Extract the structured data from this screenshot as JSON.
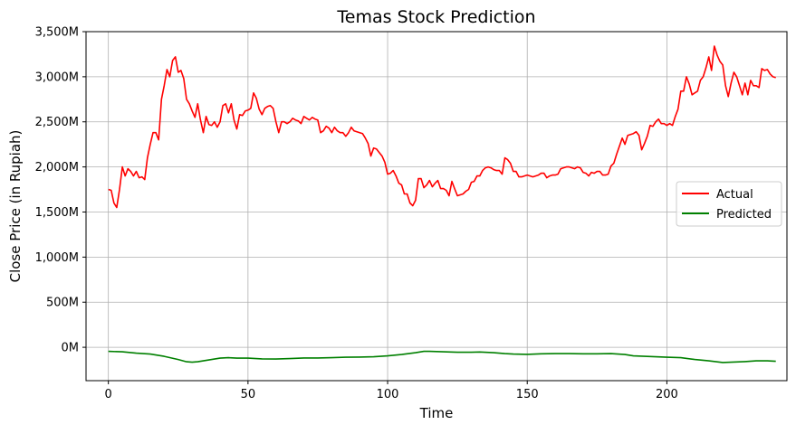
{
  "chart_data": {
    "type": "line",
    "title": "Temas Stock Prediction",
    "xlabel": "Time",
    "ylabel": "Close Price (in Rupiah)",
    "xlim": [
      -8,
      243
    ],
    "ylim": [
      -370,
      3500
    ],
    "xticks": [
      0,
      50,
      100,
      150,
      200
    ],
    "yticks": [
      {
        "value": 0,
        "label": "0M"
      },
      {
        "value": 500,
        "label": "500M"
      },
      {
        "value": 1000,
        "label": "1,000M"
      },
      {
        "value": 1500,
        "label": "1,500M"
      },
      {
        "value": 2000,
        "label": "2,000M"
      },
      {
        "value": 2500,
        "label": "2,500M"
      },
      {
        "value": 3000,
        "label": "3,000M"
      },
      {
        "value": 3500,
        "label": "3,500M"
      }
    ],
    "grid": true,
    "legend": {
      "position": "center-right"
    },
    "series": [
      {
        "name": "Actual",
        "color": "#ff0000",
        "points": [
          [
            0,
            1750
          ],
          [
            1,
            1740
          ],
          [
            2,
            1600
          ],
          [
            3,
            1550
          ],
          [
            4,
            1750
          ],
          [
            5,
            2000
          ],
          [
            6,
            1900
          ],
          [
            7,
            1980
          ],
          [
            8,
            1950
          ],
          [
            9,
            1900
          ],
          [
            10,
            1950
          ],
          [
            11,
            1880
          ],
          [
            12,
            1890
          ],
          [
            13,
            1860
          ],
          [
            14,
            2100
          ],
          [
            15,
            2250
          ],
          [
            16,
            2380
          ],
          [
            17,
            2380
          ],
          [
            18,
            2300
          ],
          [
            19,
            2750
          ],
          [
            20,
            2900
          ],
          [
            21,
            3080
          ],
          [
            22,
            3000
          ],
          [
            23,
            3180
          ],
          [
            24,
            3220
          ],
          [
            25,
            3050
          ],
          [
            26,
            3070
          ],
          [
            27,
            2980
          ],
          [
            28,
            2750
          ],
          [
            29,
            2700
          ],
          [
            30,
            2620
          ],
          [
            31,
            2550
          ],
          [
            32,
            2700
          ],
          [
            33,
            2520
          ],
          [
            34,
            2380
          ],
          [
            35,
            2560
          ],
          [
            36,
            2470
          ],
          [
            37,
            2460
          ],
          [
            38,
            2500
          ],
          [
            39,
            2440
          ],
          [
            40,
            2500
          ],
          [
            41,
            2680
          ],
          [
            42,
            2700
          ],
          [
            43,
            2600
          ],
          [
            44,
            2700
          ],
          [
            45,
            2520
          ],
          [
            46,
            2420
          ],
          [
            47,
            2580
          ],
          [
            48,
            2570
          ],
          [
            49,
            2620
          ],
          [
            50,
            2630
          ],
          [
            51,
            2650
          ],
          [
            52,
            2820
          ],
          [
            53,
            2760
          ],
          [
            54,
            2640
          ],
          [
            55,
            2580
          ],
          [
            56,
            2650
          ],
          [
            57,
            2670
          ],
          [
            58,
            2680
          ],
          [
            59,
            2650
          ],
          [
            60,
            2500
          ],
          [
            61,
            2380
          ],
          [
            62,
            2500
          ],
          [
            63,
            2500
          ],
          [
            64,
            2480
          ],
          [
            65,
            2500
          ],
          [
            66,
            2540
          ],
          [
            67,
            2520
          ],
          [
            68,
            2510
          ],
          [
            69,
            2480
          ],
          [
            70,
            2560
          ],
          [
            71,
            2540
          ],
          [
            72,
            2520
          ],
          [
            73,
            2550
          ],
          [
            74,
            2530
          ],
          [
            75,
            2520
          ],
          [
            76,
            2380
          ],
          [
            77,
            2400
          ],
          [
            78,
            2450
          ],
          [
            79,
            2430
          ],
          [
            80,
            2380
          ],
          [
            81,
            2440
          ],
          [
            82,
            2400
          ],
          [
            83,
            2380
          ],
          [
            84,
            2380
          ],
          [
            85,
            2340
          ],
          [
            86,
            2380
          ],
          [
            87,
            2440
          ],
          [
            88,
            2400
          ],
          [
            89,
            2390
          ],
          [
            90,
            2380
          ],
          [
            91,
            2370
          ],
          [
            92,
            2320
          ],
          [
            93,
            2260
          ],
          [
            94,
            2120
          ],
          [
            95,
            2210
          ],
          [
            96,
            2200
          ],
          [
            97,
            2160
          ],
          [
            98,
            2120
          ],
          [
            99,
            2050
          ],
          [
            100,
            1920
          ],
          [
            101,
            1930
          ],
          [
            102,
            1960
          ],
          [
            103,
            1900
          ],
          [
            104,
            1820
          ],
          [
            105,
            1800
          ],
          [
            106,
            1700
          ],
          [
            107,
            1700
          ],
          [
            108,
            1600
          ],
          [
            109,
            1570
          ],
          [
            110,
            1630
          ],
          [
            111,
            1870
          ],
          [
            112,
            1870
          ],
          [
            113,
            1770
          ],
          [
            114,
            1800
          ],
          [
            115,
            1850
          ],
          [
            116,
            1780
          ],
          [
            117,
            1820
          ],
          [
            118,
            1850
          ],
          [
            119,
            1760
          ],
          [
            120,
            1760
          ],
          [
            121,
            1740
          ],
          [
            122,
            1680
          ],
          [
            123,
            1840
          ],
          [
            124,
            1760
          ],
          [
            125,
            1680
          ],
          [
            126,
            1690
          ],
          [
            127,
            1700
          ],
          [
            128,
            1730
          ],
          [
            129,
            1750
          ],
          [
            130,
            1830
          ],
          [
            131,
            1840
          ],
          [
            132,
            1900
          ],
          [
            133,
            1900
          ],
          [
            134,
            1960
          ],
          [
            135,
            1990
          ],
          [
            136,
            2000
          ],
          [
            137,
            1990
          ],
          [
            138,
            1970
          ],
          [
            139,
            1960
          ],
          [
            140,
            1960
          ],
          [
            141,
            1920
          ],
          [
            142,
            2100
          ],
          [
            143,
            2080
          ],
          [
            144,
            2040
          ],
          [
            145,
            1950
          ],
          [
            146,
            1950
          ],
          [
            147,
            1890
          ],
          [
            148,
            1890
          ],
          [
            149,
            1900
          ],
          [
            150,
            1910
          ],
          [
            151,
            1900
          ],
          [
            152,
            1890
          ],
          [
            153,
            1900
          ],
          [
            154,
            1910
          ],
          [
            155,
            1930
          ],
          [
            156,
            1930
          ],
          [
            157,
            1880
          ],
          [
            158,
            1900
          ],
          [
            159,
            1910
          ],
          [
            160,
            1910
          ],
          [
            161,
            1920
          ],
          [
            162,
            1980
          ],
          [
            163,
            1990
          ],
          [
            164,
            2000
          ],
          [
            165,
            2000
          ],
          [
            166,
            1990
          ],
          [
            167,
            1980
          ],
          [
            168,
            2000
          ],
          [
            169,
            1990
          ],
          [
            170,
            1940
          ],
          [
            171,
            1930
          ],
          [
            172,
            1900
          ],
          [
            173,
            1940
          ],
          [
            174,
            1930
          ],
          [
            175,
            1950
          ],
          [
            176,
            1950
          ],
          [
            177,
            1910
          ],
          [
            178,
            1910
          ],
          [
            179,
            1920
          ],
          [
            180,
            2010
          ],
          [
            181,
            2040
          ],
          [
            182,
            2140
          ],
          [
            183,
            2230
          ],
          [
            184,
            2320
          ],
          [
            185,
            2250
          ],
          [
            186,
            2350
          ],
          [
            187,
            2360
          ],
          [
            188,
            2370
          ],
          [
            189,
            2390
          ],
          [
            190,
            2350
          ],
          [
            191,
            2190
          ],
          [
            192,
            2260
          ],
          [
            193,
            2340
          ],
          [
            194,
            2460
          ],
          [
            195,
            2450
          ],
          [
            196,
            2500
          ],
          [
            197,
            2530
          ],
          [
            198,
            2480
          ],
          [
            199,
            2480
          ],
          [
            200,
            2460
          ],
          [
            201,
            2480
          ],
          [
            202,
            2460
          ],
          [
            203,
            2560
          ],
          [
            204,
            2640
          ],
          [
            205,
            2840
          ],
          [
            206,
            2840
          ],
          [
            207,
            3000
          ],
          [
            208,
            2920
          ],
          [
            209,
            2800
          ],
          [
            210,
            2820
          ],
          [
            211,
            2840
          ],
          [
            212,
            2960
          ],
          [
            213,
            3000
          ],
          [
            214,
            3100
          ],
          [
            215,
            3220
          ],
          [
            216,
            3070
          ],
          [
            217,
            3340
          ],
          [
            218,
            3240
          ],
          [
            219,
            3170
          ],
          [
            220,
            3130
          ],
          [
            221,
            2900
          ],
          [
            222,
            2780
          ],
          [
            223,
            2930
          ],
          [
            224,
            3050
          ],
          [
            225,
            3000
          ],
          [
            226,
            2900
          ],
          [
            227,
            2800
          ],
          [
            228,
            2930
          ],
          [
            229,
            2800
          ],
          [
            230,
            2960
          ],
          [
            231,
            2900
          ],
          [
            232,
            2900
          ],
          [
            233,
            2880
          ],
          [
            234,
            3090
          ],
          [
            235,
            3070
          ],
          [
            236,
            3080
          ],
          [
            237,
            3030
          ],
          [
            238,
            3000
          ],
          [
            239,
            2990
          ]
        ]
      },
      {
        "name": "Predicted",
        "color": "#008000",
        "points": [
          [
            0,
            -45
          ],
          [
            5,
            -50
          ],
          [
            10,
            -65
          ],
          [
            15,
            -75
          ],
          [
            20,
            -100
          ],
          [
            25,
            -135
          ],
          [
            28,
            -160
          ],
          [
            30,
            -165
          ],
          [
            32,
            -160
          ],
          [
            35,
            -145
          ],
          [
            40,
            -120
          ],
          [
            43,
            -115
          ],
          [
            46,
            -120
          ],
          [
            50,
            -120
          ],
          [
            55,
            -128
          ],
          [
            60,
            -130
          ],
          [
            65,
            -125
          ],
          [
            70,
            -118
          ],
          [
            75,
            -118
          ],
          [
            80,
            -115
          ],
          [
            85,
            -110
          ],
          [
            90,
            -108
          ],
          [
            95,
            -105
          ],
          [
            100,
            -95
          ],
          [
            105,
            -80
          ],
          [
            110,
            -60
          ],
          [
            113,
            -45
          ],
          [
            115,
            -45
          ],
          [
            120,
            -50
          ],
          [
            125,
            -55
          ],
          [
            130,
            -55
          ],
          [
            133,
            -52
          ],
          [
            138,
            -60
          ],
          [
            142,
            -70
          ],
          [
            145,
            -75
          ],
          [
            150,
            -78
          ],
          [
            155,
            -72
          ],
          [
            160,
            -70
          ],
          [
            165,
            -70
          ],
          [
            170,
            -72
          ],
          [
            175,
            -72
          ],
          [
            180,
            -70
          ],
          [
            185,
            -80
          ],
          [
            188,
            -95
          ],
          [
            192,
            -100
          ],
          [
            196,
            -105
          ],
          [
            200,
            -110
          ],
          [
            205,
            -115
          ],
          [
            210,
            -135
          ],
          [
            215,
            -150
          ],
          [
            220,
            -168
          ],
          [
            223,
            -165
          ],
          [
            228,
            -158
          ],
          [
            232,
            -150
          ],
          [
            236,
            -150
          ],
          [
            239,
            -155
          ]
        ]
      }
    ]
  }
}
